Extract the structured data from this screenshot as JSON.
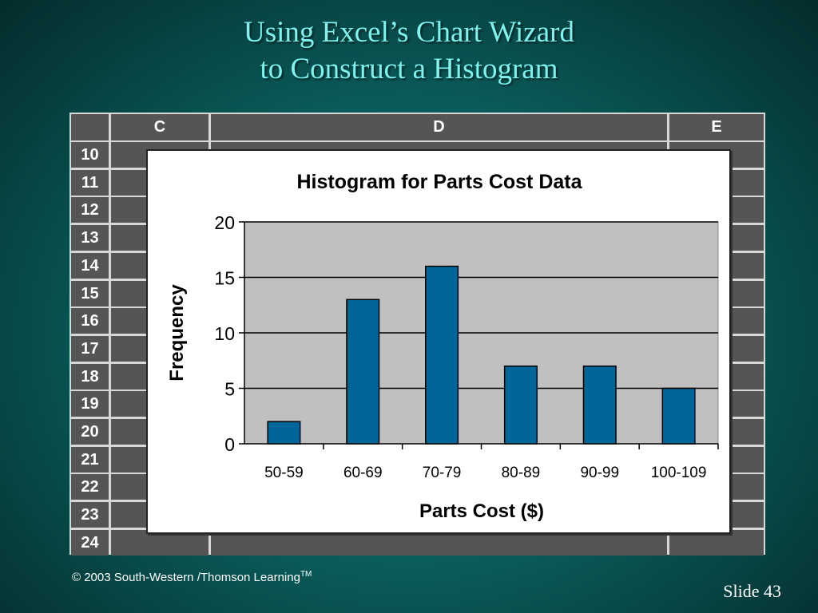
{
  "slide": {
    "title_line1": "Using Excel’s Chart Wizard",
    "title_line2": "to Construct a Histogram",
    "footer_copyright": "© 2003  South-Western /Thomson Learning",
    "footer_tm": "TM",
    "slide_label": "Slide 43"
  },
  "spreadsheet": {
    "columns": [
      "C",
      "D",
      "E"
    ],
    "rows": [
      "10",
      "11",
      "12",
      "13",
      "14",
      "15",
      "16",
      "17",
      "18",
      "19",
      "20",
      "21",
      "22",
      "23",
      "24"
    ]
  },
  "chart_data": {
    "type": "bar",
    "title": "Histogram for Parts Cost Data",
    "xlabel": "Parts Cost ($)",
    "ylabel": "Frequency",
    "categories": [
      "50-59",
      "60-69",
      "70-79",
      "80-89",
      "90-99",
      "100-109"
    ],
    "values": [
      2,
      13,
      16,
      7,
      7,
      5
    ],
    "ylim": [
      0,
      20
    ],
    "yticks": [
      0,
      5,
      10,
      15,
      20
    ],
    "grid": true,
    "bar_color": "#006699",
    "plot_background": "#c0c0c0"
  }
}
